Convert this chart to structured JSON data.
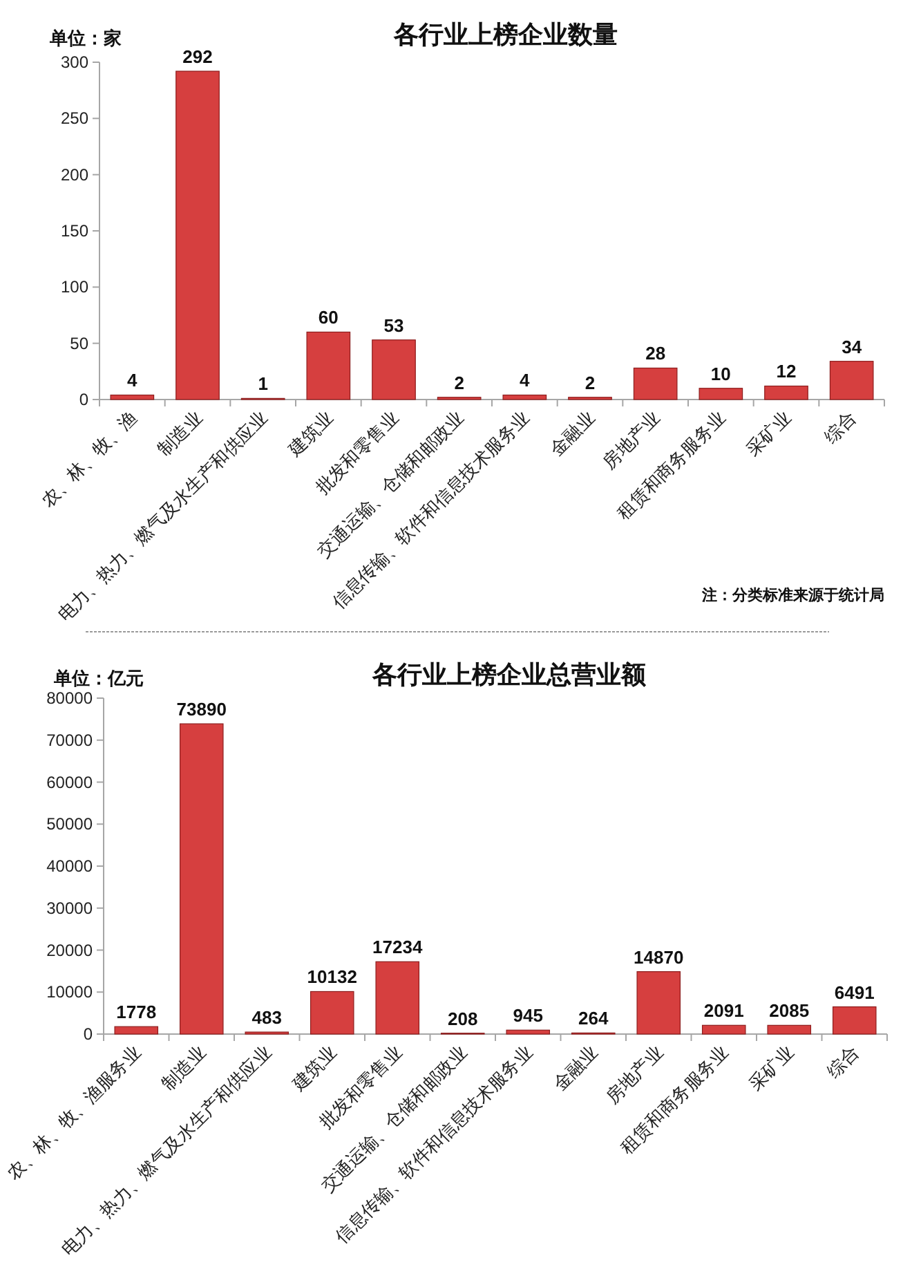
{
  "chart_data": [
    {
      "type": "bar",
      "title": "各行业上榜企业数量",
      "ylabel": "单位：家",
      "categories": [
        "农、林、牧、渔",
        "制造业",
        "电力、热力、燃气及水生产和供应业",
        "建筑业",
        "批发和零售业",
        "交通运输、仓储和邮政业",
        "信息传输、软件和信息技术服务业",
        "金融业",
        "房地产业",
        "租赁和商务服务业",
        "采矿业",
        "综合"
      ],
      "values": [
        4,
        292,
        1,
        60,
        53,
        2,
        4,
        2,
        28,
        10,
        12,
        34
      ],
      "color": "#d63f3f",
      "ylim": [
        0,
        300
      ],
      "yticks": [
        0,
        50,
        100,
        150,
        200,
        250,
        300
      ],
      "data_labels": true,
      "annotations": [
        "注：分类标准来源于统计局"
      ]
    },
    {
      "type": "bar",
      "title": "各行业上榜企业总营业额",
      "ylabel": "单位：亿元",
      "categories": [
        "农、林、牧、渔服务业",
        "制造业",
        "电力、热力、燃气及水生产和供应业",
        "建筑业",
        "批发和零售业",
        "交通运输、仓储和邮政业",
        "信息传输、软件和信息技术服务业",
        "金融业",
        "房地产业",
        "租赁和商务服务业",
        "采矿业",
        "综合"
      ],
      "values": [
        1778,
        73890,
        483,
        10132,
        17234,
        208,
        945,
        264,
        14870,
        2091,
        2085,
        6491
      ],
      "color": "#d63f3f",
      "ylim": [
        0,
        80000
      ],
      "yticks": [
        0,
        10000,
        20000,
        30000,
        40000,
        50000,
        60000,
        70000,
        80000
      ],
      "data_labels": true
    }
  ]
}
